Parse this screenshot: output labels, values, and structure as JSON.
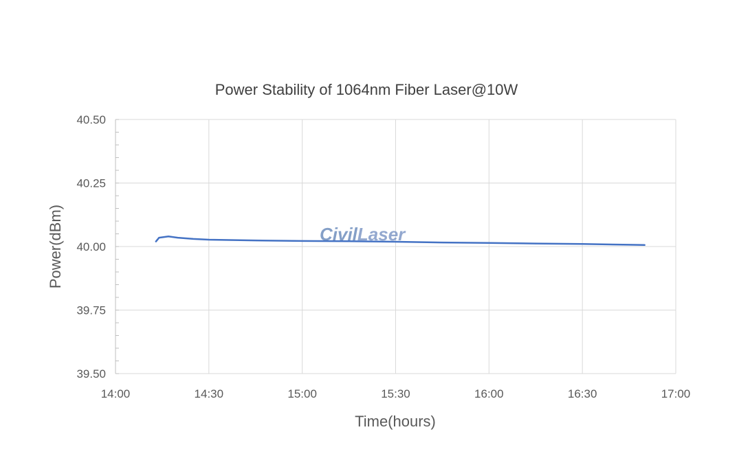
{
  "chart_data": {
    "type": "line",
    "title": "Power Stability of 1064nm Fiber Laser@10W",
    "xlabel": "Time(hours)",
    "ylabel": "Power(dBm)",
    "xlim": [
      "14:00",
      "17:00"
    ],
    "ylim": [
      39.5,
      40.5
    ],
    "x_ticks": [
      "14:00",
      "14:30",
      "15:00",
      "15:30",
      "16:00",
      "16:30",
      "17:00"
    ],
    "y_ticks": [
      "40.50",
      "40.25",
      "40.00",
      "39.75",
      "39.50"
    ],
    "grid": true,
    "legend": false,
    "series": [
      {
        "color": "#4472c4",
        "x": [
          "14:13",
          "14:14",
          "14:17",
          "14:20",
          "14:25",
          "14:30",
          "14:45",
          "15:00",
          "15:15",
          "15:30",
          "15:45",
          "16:00",
          "16:15",
          "16:30",
          "16:45",
          "16:50"
        ],
        "y": [
          40.02,
          40.035,
          40.04,
          40.035,
          40.03,
          40.027,
          40.024,
          40.022,
          40.021,
          40.019,
          40.016,
          40.014,
          40.012,
          40.01,
          40.007,
          40.006
        ]
      }
    ]
  },
  "watermark": {
    "part1": "Civil",
    "part2": "Laser"
  }
}
